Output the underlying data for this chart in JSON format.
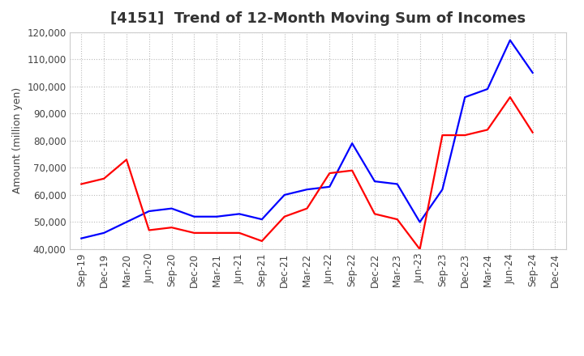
{
  "title": "[4151]  Trend of 12-Month Moving Sum of Incomes",
  "ylabel": "Amount (million yen)",
  "xlabels": [
    "Sep-19",
    "Dec-19",
    "Mar-20",
    "Jun-20",
    "Sep-20",
    "Dec-20",
    "Mar-21",
    "Jun-21",
    "Sep-21",
    "Dec-21",
    "Mar-22",
    "Jun-22",
    "Sep-22",
    "Dec-22",
    "Mar-23",
    "Jun-23",
    "Sep-23",
    "Dec-23",
    "Mar-24",
    "Jun-24",
    "Sep-24",
    "Dec-24"
  ],
  "ordinary_income": [
    44000,
    46000,
    50000,
    54000,
    55000,
    52000,
    52000,
    53000,
    51000,
    60000,
    62000,
    63000,
    79000,
    65000,
    64000,
    50000,
    62000,
    96000,
    99000,
    117000,
    105000,
    null
  ],
  "net_income": [
    64000,
    66000,
    73000,
    47000,
    48000,
    46000,
    46000,
    46000,
    43000,
    52000,
    55000,
    68000,
    69000,
    53000,
    51000,
    40000,
    82000,
    82000,
    84000,
    96000,
    83000,
    null
  ],
  "ordinary_income_color": "#0000ff",
  "net_income_color": "#ff0000",
  "background_color": "#ffffff",
  "grid_color": "#bbbbbb",
  "ylim": [
    40000,
    120000
  ],
  "yticks": [
    40000,
    50000,
    60000,
    70000,
    80000,
    90000,
    100000,
    110000,
    120000
  ],
  "title_fontsize": 13,
  "axis_label_fontsize": 9,
  "tick_fontsize": 8.5,
  "legend_fontsize": 9.5,
  "line_width": 1.6
}
